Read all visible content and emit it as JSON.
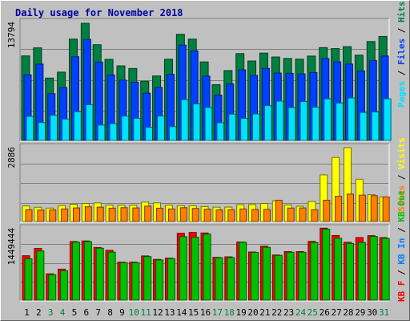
{
  "chart_data": [
    {
      "type": "bar",
      "title": "Daily usage for November 2018",
      "panel": "hits-files-pages",
      "y_max_label": "13794",
      "y_max": 13794,
      "legend": [
        "Pages",
        "Files",
        "Hits"
      ],
      "legend_colors": [
        "#00e0ff",
        "#0040ff",
        "#008040"
      ],
      "grid": true,
      "categories": [
        "1",
        "2",
        "3",
        "4",
        "5",
        "6",
        "7",
        "8",
        "9",
        "10",
        "11",
        "12",
        "13",
        "14",
        "15",
        "16",
        "17",
        "18",
        "19",
        "20",
        "21",
        "22",
        "23",
        "24",
        "25",
        "26",
        "27",
        "28",
        "29",
        "30",
        "31"
      ],
      "weekend_days": [
        "3",
        "4",
        "10",
        "11",
        "17",
        "18",
        "24",
        "25",
        "31"
      ],
      "series": [
        {
          "name": "Hits",
          "color": "#008040",
          "values": [
            9950,
            10900,
            7340,
            8040,
            11930,
            13790,
            11270,
            9550,
            8780,
            8470,
            6970,
            7590,
            9560,
            12490,
            11930,
            9240,
            6560,
            8220,
            10220,
            9350,
            10280,
            9820,
            9650,
            9570,
            9930,
            10930,
            10810,
            11040,
            10040,
            11640,
            12240
          ]
        },
        {
          "name": "Files",
          "color": "#0040ff",
          "values": [
            7720,
            8990,
            5510,
            6230,
            9850,
            11890,
            9230,
            7720,
            7100,
            6850,
            5560,
            6240,
            7790,
            11220,
            10550,
            7580,
            5330,
            6660,
            8310,
            7650,
            8480,
            7930,
            7900,
            7830,
            7990,
            9640,
            9250,
            8990,
            8180,
            9410,
            9940
          ]
        },
        {
          "name": "Pages",
          "color": "#00e0ff",
          "values": [
            2830,
            2110,
            2960,
            2520,
            3390,
            4200,
            1810,
            1980,
            2870,
            2600,
            1550,
            2870,
            1620,
            4800,
            4300,
            3880,
            2080,
            3090,
            2600,
            3120,
            4100,
            4630,
            3870,
            4570,
            3900,
            4900,
            4400,
            5000,
            3280,
            3350,
            4900
          ]
        }
      ]
    },
    {
      "type": "bar",
      "panel": "visits-sites",
      "y_max_label": "2886",
      "y_max": 2886,
      "legend": [
        "Sites",
        "Visits"
      ],
      "legend_colors": [
        "#ff8000",
        "#ffff00"
      ],
      "grid": true,
      "categories": [
        "1",
        "2",
        "3",
        "4",
        "5",
        "6",
        "7",
        "8",
        "9",
        "10",
        "11",
        "12",
        "13",
        "14",
        "15",
        "16",
        "17",
        "18",
        "19",
        "20",
        "21",
        "22",
        "23",
        "24",
        "25",
        "26",
        "27",
        "28",
        "29",
        "30",
        "31"
      ],
      "series": [
        {
          "name": "Visits",
          "color": "#ffff00",
          "values": [
            606,
            557,
            524,
            624,
            672,
            703,
            727,
            639,
            633,
            633,
            759,
            727,
            640,
            618,
            618,
            584,
            560,
            563,
            655,
            664,
            705,
            808,
            648,
            596,
            782,
            1822,
            2504,
            2886,
            1652,
            1048,
            960
          ]
        },
        {
          "name": "Sites",
          "color": "#ff8000",
          "values": [
            460,
            445,
            450,
            490,
            530,
            575,
            560,
            520,
            540,
            530,
            600,
            520,
            490,
            540,
            510,
            480,
            450,
            460,
            490,
            470,
            470,
            830,
            525,
            530,
            460,
            830,
            985,
            1070,
            1030,
            1010,
            960
          ]
        }
      ]
    },
    {
      "type": "bar",
      "panel": "kbytes",
      "y_max_label": "1449444",
      "y_max": 1449444,
      "legend": [
        "KB F",
        "KB In",
        "KB Out"
      ],
      "legend_colors": [
        "#ff0000",
        "#0080ff",
        "#00c000"
      ],
      "grid": true,
      "categories": [
        "1",
        "2",
        "3",
        "4",
        "5",
        "6",
        "7",
        "8",
        "9",
        "10",
        "11",
        "12",
        "13",
        "14",
        "15",
        "16",
        "17",
        "18",
        "19",
        "20",
        "21",
        "22",
        "23",
        "24",
        "25",
        "26",
        "27",
        "28",
        "29",
        "30",
        "31"
      ],
      "series": [
        {
          "name": "KB F",
          "color": "#ff0000",
          "values": [
            891000,
            1037000,
            528000,
            622000,
            1176000,
            1188000,
            1056000,
            999000,
            762000,
            762000,
            887000,
            817000,
            843000,
            1341000,
            1358000,
            1348000,
            859000,
            869000,
            1167000,
            966000,
            1082000,
            906000,
            974000,
            974000,
            1179000,
            1444000,
            1296000,
            1160000,
            1255000,
            1294000,
            1255000
          ]
        },
        {
          "name": "KB Out",
          "color": "#00c000",
          "values": [
            829000,
            987000,
            510000,
            589000,
            1164000,
            1176000,
            1042000,
            964000,
            752000,
            752000,
            874000,
            806000,
            835000,
            1274000,
            1261000,
            1325000,
            851000,
            854000,
            1162000,
            958000,
            1060000,
            897000,
            961000,
            961000,
            1157000,
            1423000,
            1240000,
            1139000,
            1158000,
            1278000,
            1240000
          ]
        }
      ]
    }
  ]
}
